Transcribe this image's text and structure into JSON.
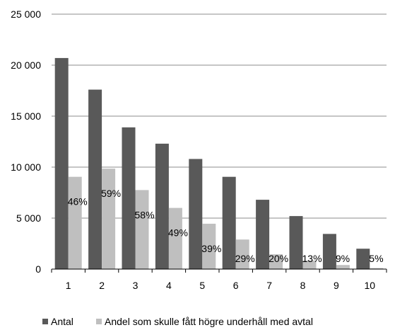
{
  "chart_data": {
    "type": "bar",
    "categories": [
      "1",
      "2",
      "3",
      "4",
      "5",
      "6",
      "7",
      "8",
      "9",
      "10"
    ],
    "series": [
      {
        "name": "Antal",
        "color": "#595959",
        "values": [
          20700,
          17600,
          13900,
          12300,
          10800,
          9050,
          6800,
          5200,
          3450,
          2000
        ]
      },
      {
        "name": "Andel som skulle fått högre underhåll med avtal",
        "color": "#bfbfbf",
        "values": [
          9050,
          9850,
          7750,
          6000,
          4450,
          2900,
          1450,
          850,
          400,
          100
        ]
      }
    ],
    "data_labels": [
      "46%",
      "59%",
      "58%",
      "49%",
      "39%",
      "29%",
      "20%",
      "13%",
      "9%",
      "5%"
    ],
    "y_ticks": [
      "0",
      "5 000",
      "10 000",
      "15 000",
      "20 000",
      "25 000"
    ],
    "ylim": [
      0,
      25000
    ],
    "grid": true,
    "legend_position": "bottom-left",
    "title": "",
    "xlabel": "",
    "ylabel": ""
  }
}
